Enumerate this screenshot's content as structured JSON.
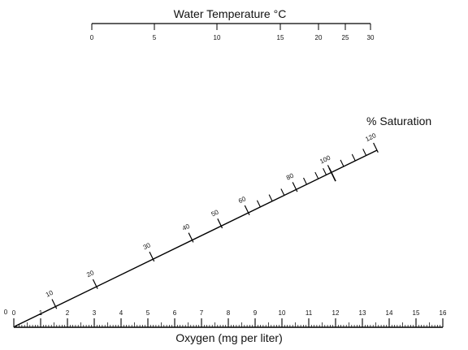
{
  "temperature_scale": {
    "title": "Water Temperature °C",
    "ticks": [
      {
        "value": 0,
        "label": "0"
      },
      {
        "value": 5,
        "label": "5"
      },
      {
        "value": 10,
        "label": "10"
      },
      {
        "value": 15,
        "label": "15"
      },
      {
        "value": 20,
        "label": "20"
      },
      {
        "value": 25,
        "label": "25"
      },
      {
        "value": 30,
        "label": "30"
      }
    ]
  },
  "saturation_scale": {
    "title": "% Saturation",
    "labeled_ticks": [
      {
        "value": 0,
        "label": "0"
      },
      {
        "value": 10,
        "label": "10"
      },
      {
        "value": 20,
        "label": "20"
      },
      {
        "value": 30,
        "label": "30"
      },
      {
        "value": 40,
        "label": "40"
      },
      {
        "value": 50,
        "label": "50"
      },
      {
        "value": 60,
        "label": "60"
      },
      {
        "value": 80,
        "label": "80"
      },
      {
        "value": 100,
        "label": "100"
      },
      {
        "value": 120,
        "label": "120"
      }
    ],
    "minor_ticks": [
      65,
      70,
      75,
      85,
      90,
      95,
      105,
      110,
      115
    ],
    "marked_value": 100
  },
  "oxygen_scale": {
    "title": "Oxygen (mg per liter)",
    "min": 0,
    "max": 16,
    "labels": [
      "0",
      "1",
      "2",
      "3",
      "4",
      "5",
      "6",
      "7",
      "8",
      "9",
      "10",
      "11",
      "12",
      "13",
      "14",
      "15",
      "16"
    ]
  }
}
